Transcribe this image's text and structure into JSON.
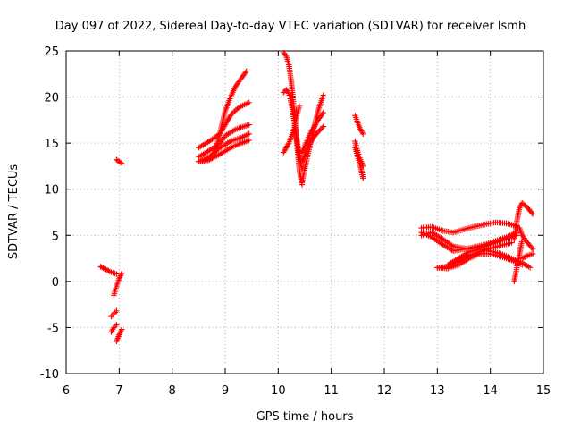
{
  "chart_data": {
    "type": "scatter",
    "title": "Day 097 of 2022, Sidereal Day-to-day VTEC variation (SDTVAR) for receiver lsmh",
    "xlabel": "GPS time / hours",
    "ylabel": "SDTVAR / TECUs",
    "xlim": [
      6,
      15
    ],
    "ylim": [
      -10,
      25
    ],
    "xticks": [
      "6",
      "7",
      "8",
      "9",
      "10",
      "11",
      "12",
      "13",
      "14",
      "15"
    ],
    "yticks": [
      "-10",
      "-5",
      "0",
      "5",
      "10",
      "15",
      "20",
      "25"
    ],
    "grid": true,
    "marker": "+",
    "color": "#ff0000",
    "tracks": [
      {
        "x": [
          6.65,
          6.75,
          6.85,
          6.95
        ],
        "y": [
          1.6,
          1.3,
          1.0,
          0.8
        ]
      },
      {
        "x": [
          6.9,
          6.95,
          7.0,
          7.05
        ],
        "y": [
          -1.5,
          -0.5,
          0.3,
          0.9
        ]
      },
      {
        "x": [
          6.85,
          6.9,
          6.95
        ],
        "y": [
          -3.8,
          -3.5,
          -3.2
        ]
      },
      {
        "x": [
          6.85,
          6.9,
          6.95
        ],
        "y": [
          -5.5,
          -5.0,
          -4.7
        ]
      },
      {
        "x": [
          6.95,
          7.0,
          7.05
        ],
        "y": [
          -6.5,
          -5.8,
          -5.2
        ]
      },
      {
        "x": [
          6.95,
          7.0,
          7.05
        ],
        "y": [
          13.2,
          13.0,
          12.8
        ]
      },
      {
        "x": [
          8.5,
          8.6,
          8.7,
          8.8,
          8.9,
          9.0,
          9.1,
          9.2,
          9.3,
          9.4
        ],
        "y": [
          13.0,
          13.0,
          13.2,
          14.0,
          16.0,
          18.5,
          20.0,
          21.2,
          22.0,
          22.8
        ]
      },
      {
        "x": [
          8.5,
          8.7,
          8.9,
          9.0,
          9.1,
          9.2,
          9.3,
          9.45
        ],
        "y": [
          14.5,
          15.2,
          16.0,
          17.0,
          18.0,
          18.6,
          19.0,
          19.4
        ]
      },
      {
        "x": [
          8.5,
          8.7,
          8.9,
          9.0,
          9.2,
          9.45
        ],
        "y": [
          13.5,
          14.2,
          15.0,
          15.8,
          16.5,
          17.0
        ]
      },
      {
        "x": [
          8.5,
          8.7,
          8.9,
          9.1,
          9.3,
          9.45
        ],
        "y": [
          13.0,
          13.5,
          14.5,
          15.2,
          15.6,
          16.0
        ]
      },
      {
        "x": [
          8.5,
          8.7,
          8.9,
          9.1,
          9.3,
          9.45
        ],
        "y": [
          13.0,
          13.2,
          13.8,
          14.5,
          15.0,
          15.3
        ]
      },
      {
        "x": [
          10.1,
          10.15,
          10.2,
          10.25,
          10.3,
          10.35,
          10.4,
          10.45
        ],
        "y": [
          24.8,
          24.5,
          23.5,
          21.5,
          18.5,
          15.0,
          12.0,
          10.5
        ]
      },
      {
        "x": [
          10.1,
          10.15,
          10.2,
          10.25,
          10.3,
          10.35,
          10.4,
          10.45
        ],
        "y": [
          20.5,
          20.8,
          20.4,
          19.2,
          17.5,
          15.5,
          13.5,
          12.2
        ]
      },
      {
        "x": [
          10.1,
          10.2,
          10.3,
          10.35,
          10.4
        ],
        "y": [
          14.0,
          15.0,
          16.5,
          18.0,
          19.0
        ]
      },
      {
        "x": [
          10.45,
          10.55,
          10.65,
          10.75,
          10.85
        ],
        "y": [
          10.8,
          13.5,
          16.0,
          18.5,
          20.2
        ]
      },
      {
        "x": [
          10.45,
          10.55,
          10.65,
          10.75,
          10.85
        ],
        "y": [
          13.0,
          14.5,
          15.5,
          16.2,
          16.8
        ]
      },
      {
        "x": [
          10.45,
          10.6,
          10.75,
          10.85
        ],
        "y": [
          14.0,
          16.0,
          17.5,
          18.3
        ]
      },
      {
        "x": [
          11.45,
          11.5,
          11.55,
          11.6
        ],
        "y": [
          18.0,
          17.2,
          16.5,
          16.0
        ]
      },
      {
        "x": [
          11.45,
          11.5,
          11.55,
          11.6
        ],
        "y": [
          15.2,
          14.0,
          13.2,
          12.5
        ]
      },
      {
        "x": [
          11.45,
          11.5,
          11.55,
          11.6
        ],
        "y": [
          14.5,
          13.5,
          12.5,
          11.2
        ]
      },
      {
        "x": [
          12.7,
          12.9,
          13.1,
          13.3,
          13.6,
          13.9,
          14.1,
          14.3,
          14.5
        ],
        "y": [
          5.8,
          5.9,
          5.5,
          5.3,
          5.8,
          6.2,
          6.4,
          6.3,
          6.0
        ]
      },
      {
        "x": [
          12.7,
          12.9,
          13.1,
          13.3,
          13.6,
          13.9,
          14.1,
          14.3,
          14.5
        ],
        "y": [
          5.0,
          5.3,
          4.6,
          3.8,
          3.5,
          3.8,
          4.2,
          4.6,
          5.0
        ]
      },
      {
        "x": [
          12.7,
          12.9,
          13.1,
          13.3,
          13.6,
          13.9,
          14.1,
          14.3,
          14.5
        ],
        "y": [
          5.3,
          4.8,
          4.0,
          3.3,
          3.6,
          4.0,
          4.4,
          4.8,
          5.3
        ]
      },
      {
        "x": [
          13.0,
          13.2,
          13.4,
          13.6,
          13.8,
          14.0,
          14.2,
          14.4
        ],
        "y": [
          1.5,
          1.6,
          2.2,
          2.8,
          3.2,
          3.6,
          3.9,
          4.2
        ]
      },
      {
        "x": [
          13.0,
          13.2,
          13.4,
          13.6,
          13.8,
          14.0,
          14.2,
          14.4,
          14.6
        ],
        "y": [
          1.5,
          1.4,
          1.8,
          2.5,
          3.0,
          3.0,
          2.7,
          2.3,
          1.8
        ]
      },
      {
        "x": [
          13.2,
          13.4,
          13.6,
          13.8,
          14.0,
          14.2,
          14.4,
          14.6,
          14.75
        ],
        "y": [
          1.8,
          2.5,
          3.2,
          3.5,
          3.3,
          3.0,
          2.5,
          2.0,
          1.5
        ]
      },
      {
        "x": [
          14.45,
          14.5,
          14.55,
          14.6,
          14.7,
          14.8
        ],
        "y": [
          4.5,
          6.5,
          8.0,
          8.5,
          8.0,
          7.3
        ]
      },
      {
        "x": [
          14.45,
          14.5,
          14.55,
          14.6
        ],
        "y": [
          0.0,
          1.5,
          3.0,
          4.5
        ]
      },
      {
        "x": [
          14.55,
          14.6,
          14.7,
          14.8
        ],
        "y": [
          5.8,
          5.0,
          4.2,
          3.5
        ]
      },
      {
        "x": [
          14.6,
          14.7,
          14.8
        ],
        "y": [
          2.5,
          2.8,
          3.0
        ]
      }
    ]
  }
}
